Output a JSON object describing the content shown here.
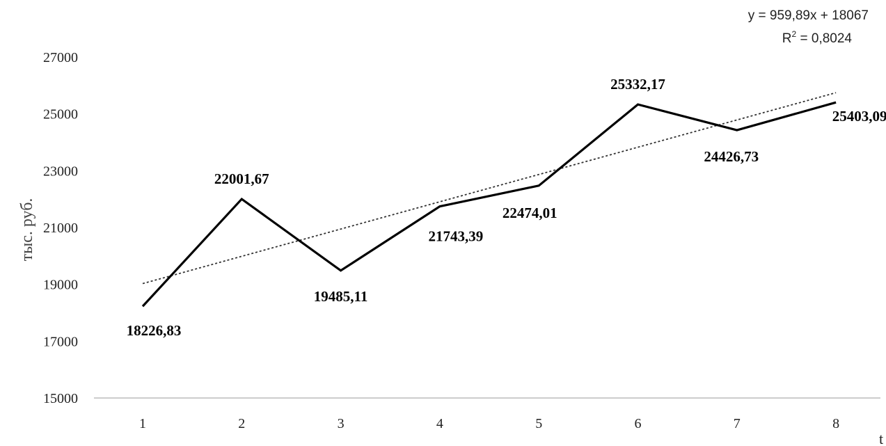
{
  "chart_data": {
    "type": "line",
    "ylabel": "тыс. руб.",
    "xlabel": "t",
    "ylim": [
      15000,
      27000
    ],
    "y_ticks": [
      "15000",
      "17000",
      "19000",
      "21000",
      "23000",
      "25000",
      "27000"
    ],
    "categories": [
      "1",
      "2",
      "3",
      "4",
      "5",
      "6",
      "7",
      "8"
    ],
    "series": [
      {
        "values": [
          18226.83,
          22001.67,
          19485.11,
          21743.39,
          22474.01,
          25332.17,
          24426.73,
          25403.09
        ],
        "labels": [
          "18226,83",
          "22001,67",
          "19485,11",
          "21743,39",
          "22474,01",
          "25332,17",
          "24426,73",
          "25403,09"
        ],
        "color": "#000000",
        "style": "solid"
      }
    ],
    "trendline": {
      "type": "linear",
      "slope": 959.89,
      "intercept": 18067,
      "equation": "y = 959,89x + 18067",
      "r2_prefix": "R",
      "r2_sup": "2",
      "r2_value": " = 0,8024",
      "color": "#333333",
      "style": "dotted"
    },
    "grid": false,
    "legend": "none"
  }
}
